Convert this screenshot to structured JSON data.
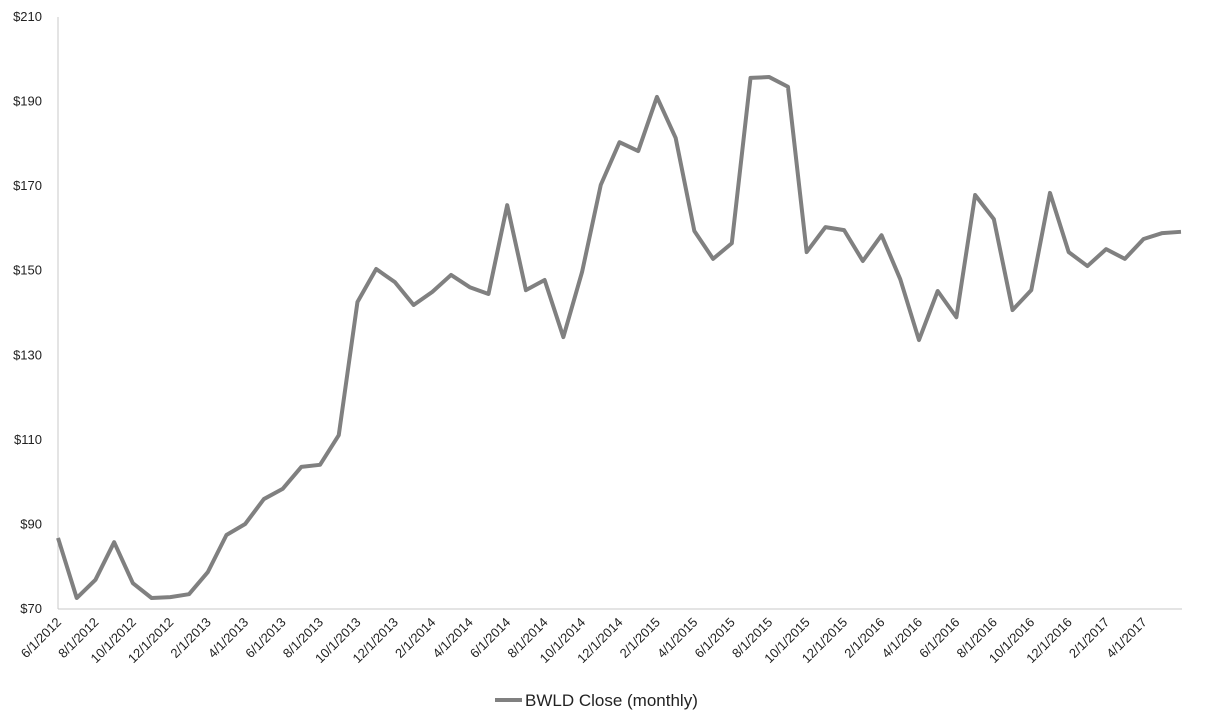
{
  "chart_data": {
    "type": "line",
    "categories": [
      "6/1/2012",
      null,
      "8/1/2012",
      null,
      "10/1/2012",
      null,
      "12/1/2012",
      null,
      "2/1/2013",
      null,
      "4/1/2013",
      null,
      "6/1/2013",
      null,
      "8/1/2013",
      null,
      "10/1/2013",
      null,
      "12/1/2013",
      null,
      "2/1/2014",
      null,
      "4/1/2014",
      null,
      "6/1/2014",
      null,
      "8/1/2014",
      null,
      "10/1/2014",
      null,
      "12/1/2014",
      null,
      "2/1/2015",
      null,
      "4/1/2015",
      null,
      "6/1/2015",
      null,
      "8/1/2015",
      null,
      "10/1/2015",
      null,
      "12/1/2015",
      null,
      "2/1/2016",
      null,
      "4/1/2016",
      null,
      "6/1/2016",
      null,
      "8/1/2016",
      null,
      "10/1/2016",
      null,
      "12/1/2016",
      null,
      "2/1/2017",
      null,
      "4/1/2017",
      null,
      null
    ],
    "series": [
      {
        "name": "BWLD Close (monthly)",
        "color": "#808080",
        "values": [
          86.8,
          72.6,
          76.9,
          85.8,
          76.1,
          72.6,
          72.8,
          73.5,
          78.7,
          87.5,
          90.1,
          96.0,
          98.4,
          103.6,
          104.1,
          111.1,
          142.6,
          150.4,
          147.3,
          141.9,
          145.0,
          149.0,
          146.1,
          144.5,
          165.5,
          145.4,
          147.8,
          134.3,
          149.7,
          170.3,
          180.4,
          178.3,
          191.1,
          181.4,
          159.4,
          152.8,
          156.5,
          195.6,
          195.8,
          193.5,
          154.4,
          160.3,
          159.6,
          152.3,
          158.4,
          148.0,
          133.6,
          145.2,
          139.0,
          167.9,
          162.2,
          140.7,
          145.4,
          168.4,
          154.4,
          151.1,
          155.1,
          152.8,
          157.5,
          158.9,
          159.2
        ]
      }
    ],
    "ylim": [
      70,
      210
    ],
    "yticks": [
      {
        "value": 70,
        "label": "$70"
      },
      {
        "value": 90,
        "label": "$90"
      },
      {
        "value": 110,
        "label": "$110"
      },
      {
        "value": 130,
        "label": "$130"
      },
      {
        "value": 150,
        "label": "$150"
      },
      {
        "value": 170,
        "label": "$170"
      },
      {
        "value": 190,
        "label": "$190"
      },
      {
        "value": 210,
        "label": "$210"
      }
    ],
    "grid": false,
    "legend": "bottom"
  }
}
